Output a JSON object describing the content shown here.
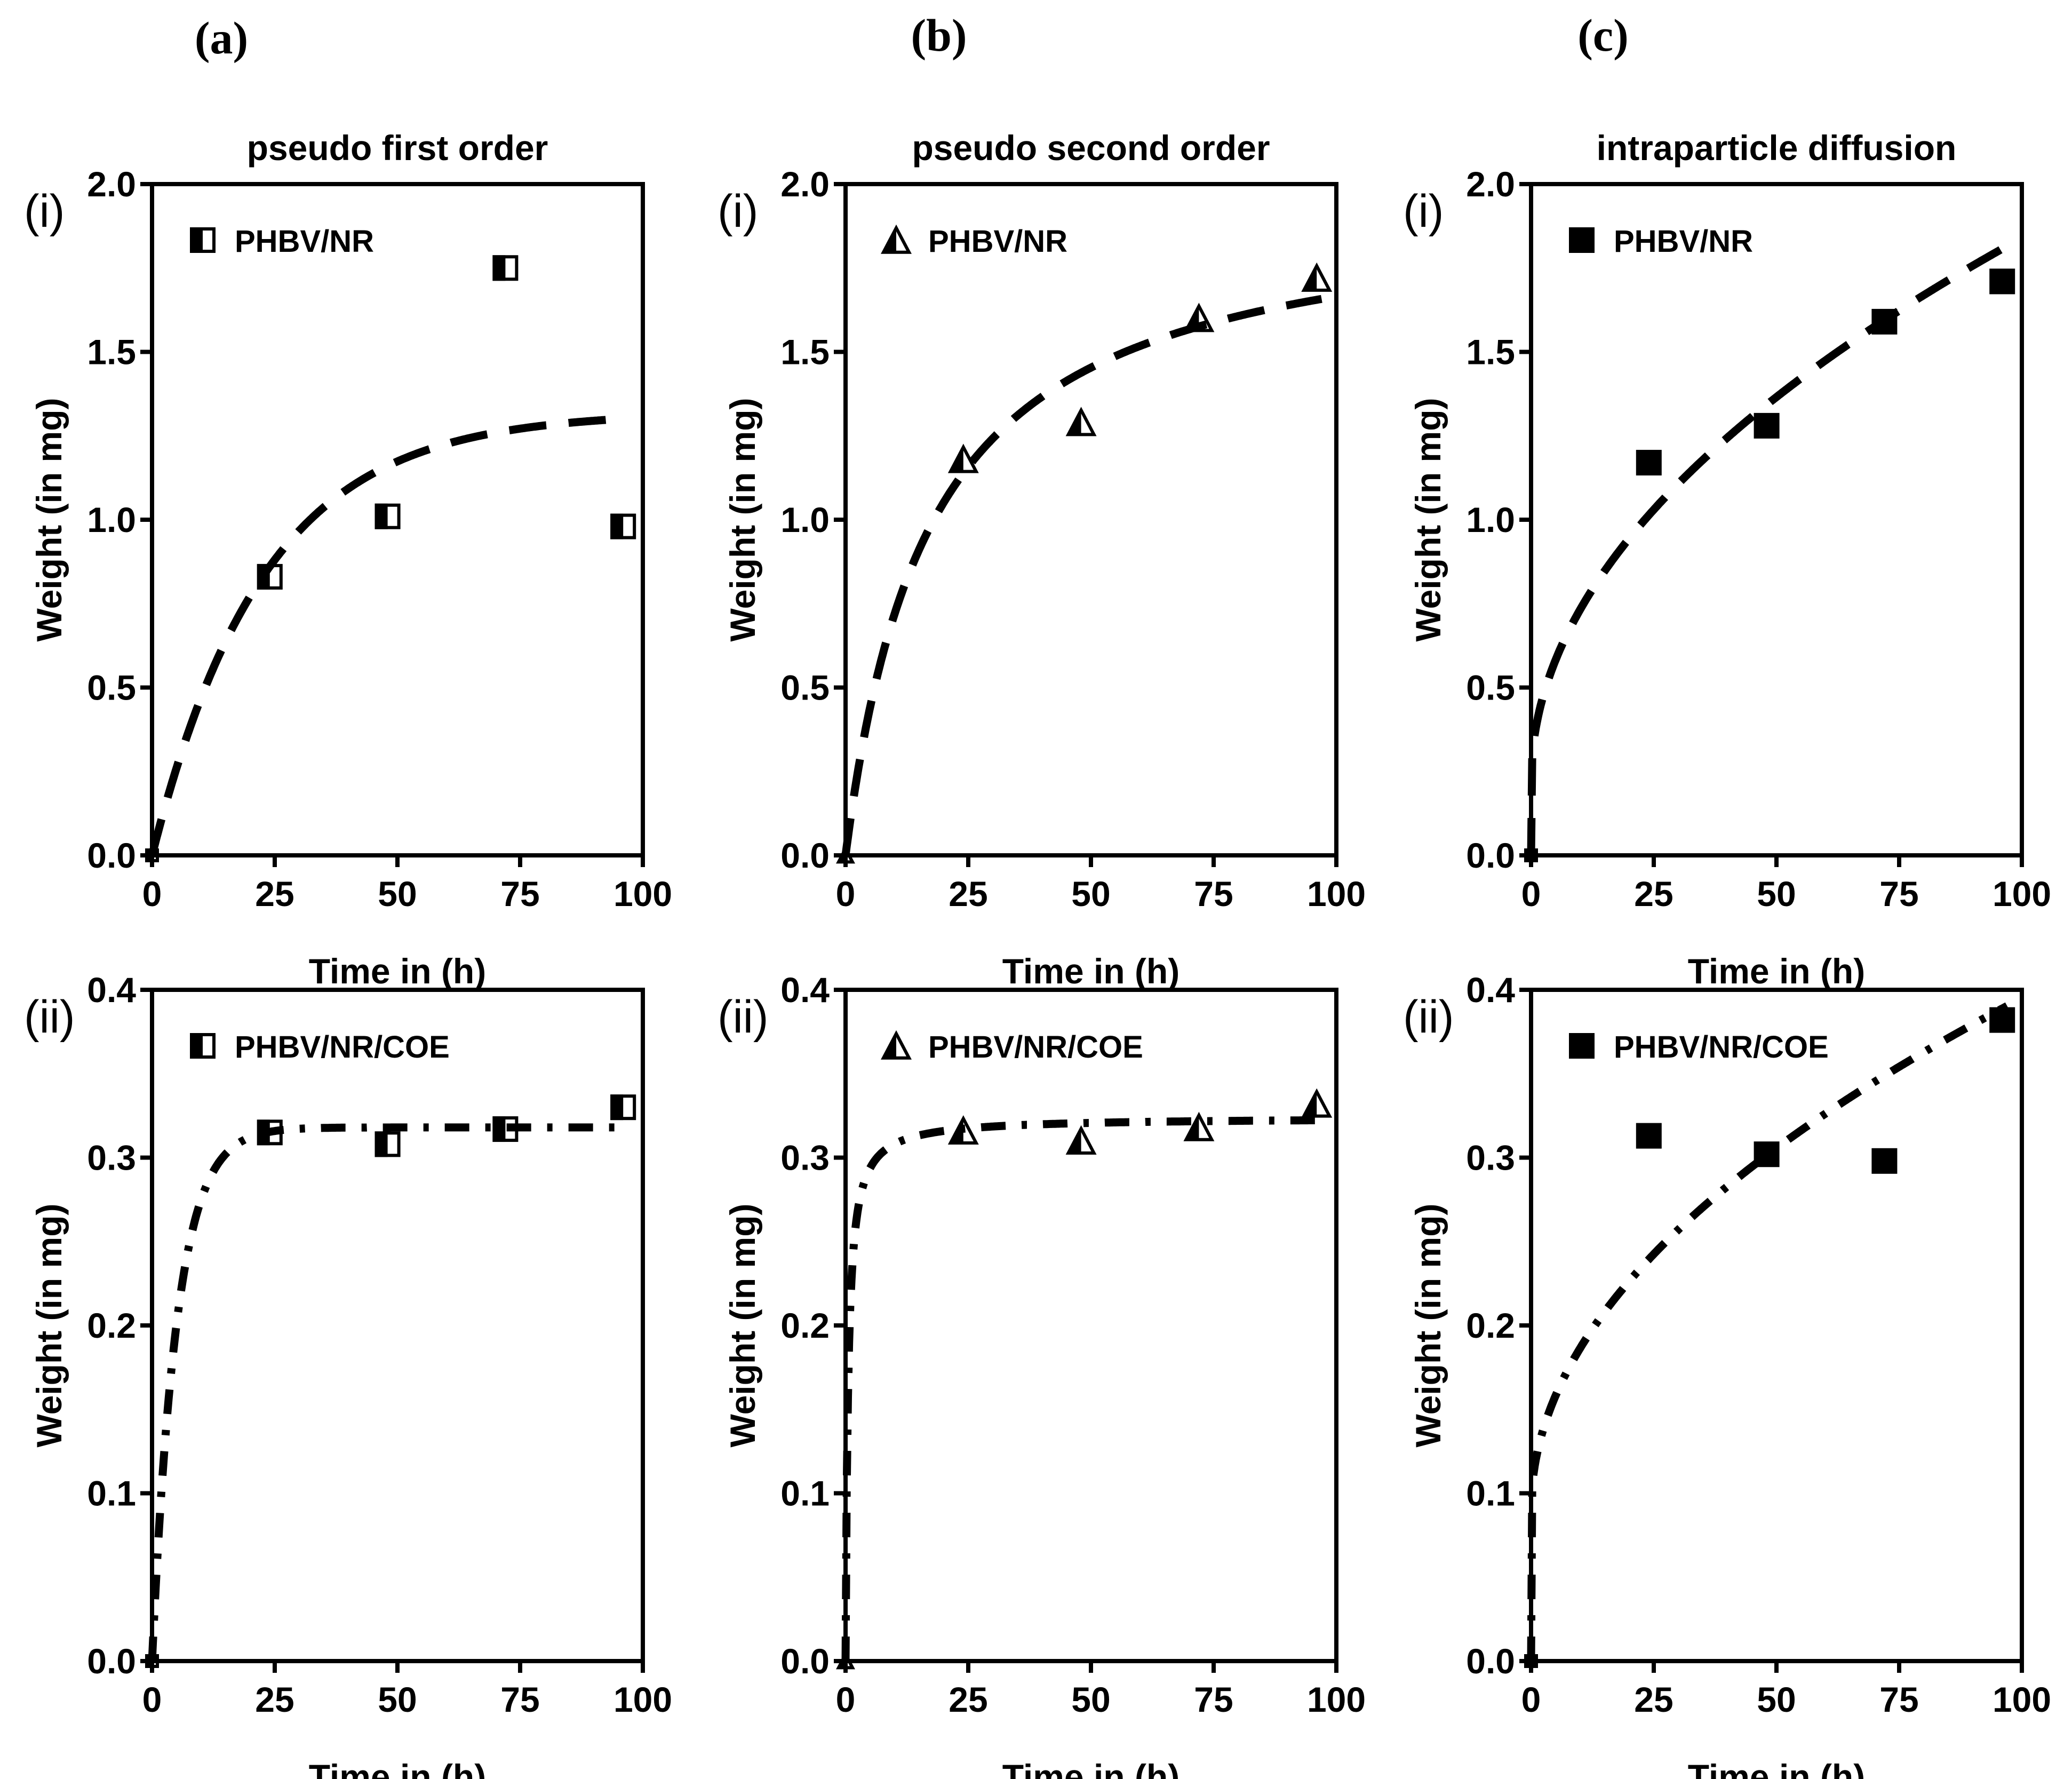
{
  "column_labels": [
    "(a)",
    "(b)",
    "(c)"
  ],
  "row_labels": [
    "(i)",
    "(ii)"
  ],
  "chart_data": [
    {
      "id": "a-i",
      "type": "scatter",
      "col": 0,
      "row": 0,
      "title": "pseudo first order",
      "row_label": "(i)",
      "xlabel": "Time in (h)",
      "ylabel": "Weight (in mg)",
      "xlim": [
        0,
        100
      ],
      "ylim": [
        0,
        2.0
      ],
      "xticks": [
        0,
        25,
        50,
        75,
        100
      ],
      "xtick_labels": [
        "0",
        "25",
        "50",
        "75",
        "100"
      ],
      "yticks": [
        0,
        0.5,
        1.0,
        1.5,
        2.0
      ],
      "ytick_labels": [
        "0.0",
        "0.5",
        "1.0",
        "1.5",
        "2.0"
      ],
      "legend": "PHBV/NR",
      "marker": "half-square",
      "fit_style": "dash",
      "points": {
        "x": [
          0,
          24,
          48,
          72,
          96
        ],
        "y": [
          0.0,
          0.83,
          1.01,
          1.75,
          0.98
        ]
      },
      "fit": {
        "model": "pseudo-first-order",
        "qe": 1.32,
        "k": 0.044
      }
    },
    {
      "id": "b-i",
      "type": "scatter",
      "col": 1,
      "row": 0,
      "title": "pseudo second order",
      "row_label": "(i)",
      "xlabel": "Time in (h)",
      "ylabel": "Weight (in mg)",
      "xlim": [
        0,
        100
      ],
      "ylim": [
        0,
        2.0
      ],
      "xticks": [
        0,
        25,
        50,
        75,
        100
      ],
      "xtick_labels": [
        "0",
        "25",
        "50",
        "75",
        "100"
      ],
      "yticks": [
        0,
        0.5,
        1.0,
        1.5,
        2.0
      ],
      "ytick_labels": [
        "0.0",
        "0.5",
        "1.0",
        "1.5",
        "2.0"
      ],
      "legend": "PHBV/NR",
      "marker": "half-triangle",
      "fit_style": "dash",
      "points": {
        "x": [
          0,
          24,
          48,
          72,
          96
        ],
        "y": [
          0.0,
          1.18,
          1.29,
          1.6,
          1.72
        ]
      },
      "fit": {
        "model": "pseudo-second-order",
        "qe": 1.95,
        "k": 0.03
      }
    },
    {
      "id": "c-i",
      "type": "scatter",
      "col": 2,
      "row": 0,
      "title": "intraparticle diffusion",
      "row_label": "(i)",
      "xlabel": "Time in (h)",
      "ylabel": "Weight  (in mg)",
      "xlim": [
        0,
        100
      ],
      "ylim": [
        0,
        2.0
      ],
      "xticks": [
        0,
        25,
        50,
        75,
        100
      ],
      "xtick_labels": [
        "0",
        "25",
        "50",
        "75",
        "100"
      ],
      "yticks": [
        0,
        0.5,
        1.0,
        1.5,
        2.0
      ],
      "ytick_labels": [
        "0.0",
        "0.5",
        "1.0",
        "1.5",
        "2.0"
      ],
      "legend": "PHBV/NR",
      "marker": "square",
      "fit_style": "dash",
      "points": {
        "x": [
          0,
          24,
          48,
          72,
          96
        ],
        "y": [
          0.0,
          1.17,
          1.28,
          1.59,
          1.71
        ]
      },
      "fit": {
        "model": "intraparticle-diffusion",
        "kid": 0.162,
        "c": 0.22
      }
    },
    {
      "id": "a-ii",
      "type": "scatter",
      "col": 0,
      "row": 1,
      "title": "",
      "row_label": "(ii)",
      "xlabel": "Time in (h)",
      "ylabel": "Weight (in mg)",
      "xlim": [
        0,
        100
      ],
      "ylim": [
        0,
        0.4
      ],
      "xticks": [
        0,
        25,
        50,
        75,
        100
      ],
      "xtick_labels": [
        "0",
        "25",
        "50",
        "75",
        "100"
      ],
      "yticks": [
        0,
        0.1,
        0.2,
        0.3,
        0.4
      ],
      "ytick_labels": [
        "0.0",
        "0.1",
        "0.2",
        "0.3",
        "0.4"
      ],
      "legend": "PHBV/NR/COE",
      "marker": "half-square",
      "fit_style": "dashdot",
      "points": {
        "x": [
          0,
          24,
          48,
          72,
          96
        ],
        "y": [
          0.0,
          0.315,
          0.308,
          0.317,
          0.33
        ]
      },
      "fit": {
        "model": "pseudo-first-order",
        "qe": 0.318,
        "k": 0.2
      }
    },
    {
      "id": "b-ii",
      "type": "scatter",
      "col": 1,
      "row": 1,
      "title": "",
      "row_label": "(ii)",
      "xlabel": "Time in (h)",
      "ylabel": "Weight (in mg)",
      "xlim": [
        0,
        100
      ],
      "ylim": [
        0,
        0.4
      ],
      "xticks": [
        0,
        25,
        50,
        75,
        100
      ],
      "xtick_labels": [
        "0",
        "25",
        "50",
        "75",
        "100"
      ],
      "yticks": [
        0,
        0.1,
        0.2,
        0.3,
        0.4
      ],
      "ytick_labels": [
        "0.0",
        "0.1",
        "0.2",
        "0.3",
        "0.4"
      ],
      "legend": "PHBV/NR/COE",
      "marker": "half-triangle",
      "fit_style": "dashdot",
      "points": {
        "x": [
          0,
          24,
          48,
          72,
          96
        ],
        "y": [
          0.0,
          0.316,
          0.31,
          0.318,
          0.332
        ]
      },
      "fit": {
        "model": "pseudo-second-order",
        "qe": 0.324,
        "k": 6.0
      }
    },
    {
      "id": "c-ii",
      "type": "scatter",
      "col": 2,
      "row": 1,
      "title": "",
      "row_label": "(ii)",
      "xlabel": "Time in (h)",
      "ylabel": "Weight (in mg)",
      "xlim": [
        0,
        100
      ],
      "ylim": [
        0,
        0.4
      ],
      "xticks": [
        0,
        25,
        50,
        75,
        100
      ],
      "xtick_labels": [
        "0",
        "25",
        "50",
        "75",
        "100"
      ],
      "yticks": [
        0,
        0.1,
        0.2,
        0.3,
        0.4
      ],
      "ytick_labels": [
        "0.0",
        "0.1",
        "0.2",
        "0.3",
        "0.4"
      ],
      "legend": "PHBV/NR/COE",
      "marker": "square",
      "fit_style": "dashdot",
      "points": {
        "x": [
          0,
          24,
          48,
          72,
          96
        ],
        "y": [
          0.0,
          0.313,
          0.302,
          0.298,
          0.382
        ]
      },
      "fit": {
        "model": "intraparticle-diffusion",
        "kid": 0.0305,
        "c": 0.09
      }
    }
  ]
}
